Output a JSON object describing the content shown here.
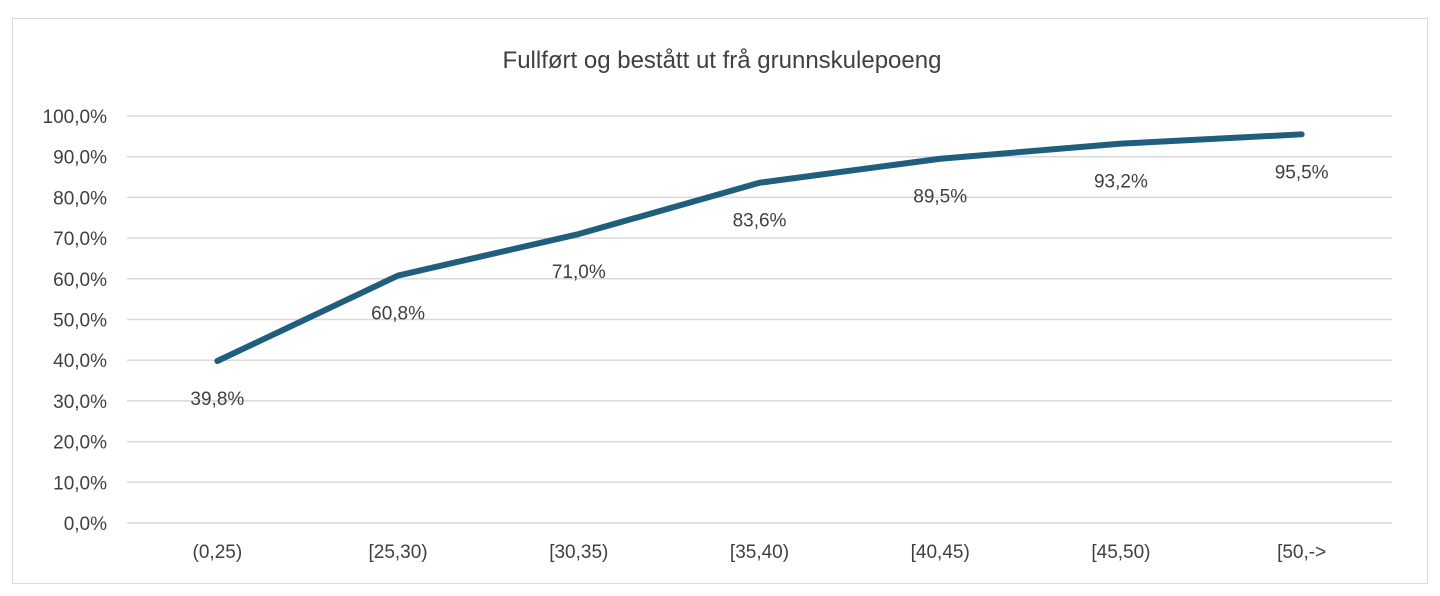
{
  "chart_data": {
    "type": "line",
    "title": "Fullført og bestått ut frå grunnskulepoeng",
    "xlabel": "",
    "ylabel": "",
    "categories": [
      "(0,25)",
      "[25,30)",
      "[30,35)",
      "[35,40)",
      "[40,45)",
      "[45,50)",
      "[50,->"
    ],
    "series": [
      {
        "values": [
          39.8,
          60.8,
          71.0,
          83.6,
          89.5,
          93.2,
          95.5
        ],
        "data_labels": [
          "39,8%",
          "60,8%",
          "71,0%",
          "83,6%",
          "89,5%",
          "93,2%",
          "95,5%"
        ],
        "color": "#1f5f7d"
      }
    ],
    "ylim": [
      0,
      100
    ],
    "yticks": [
      0,
      10,
      20,
      30,
      40,
      50,
      60,
      70,
      80,
      90,
      100
    ],
    "ytick_labels": [
      "0,0%",
      "10,0%",
      "20,0%",
      "30,0%",
      "40,0%",
      "50,0%",
      "60,0%",
      "70,0%",
      "80,0%",
      "90,0%",
      "100,0%"
    ],
    "grid": true,
    "legend": "none",
    "gridline_color": "#d9d9d9",
    "text_color": "#404040"
  }
}
